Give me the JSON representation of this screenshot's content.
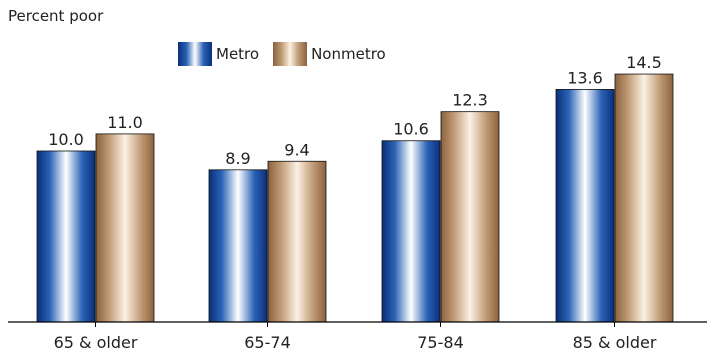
{
  "chart_data": {
    "type": "bar",
    "ylabel": "Percent poor",
    "categories": [
      "65 & older",
      "65-74",
      "75-84",
      "85 & older"
    ],
    "series": [
      {
        "name": "Metro",
        "values": [
          10.0,
          8.9,
          10.6,
          13.6
        ],
        "value_labels": [
          "10.0",
          "8.9",
          "10.6",
          "13.6"
        ]
      },
      {
        "name": "Nonmetro",
        "values": [
          11.0,
          9.4,
          12.3,
          14.5
        ],
        "value_labels": [
          "11.0",
          "9.4",
          "12.3",
          "14.5"
        ]
      }
    ],
    "ylim": [
      0,
      16
    ],
    "grid": false,
    "legend": "top-center",
    "colors": {
      "Metro": "#1d56a8",
      "Nonmetro": "#b08a64"
    }
  }
}
